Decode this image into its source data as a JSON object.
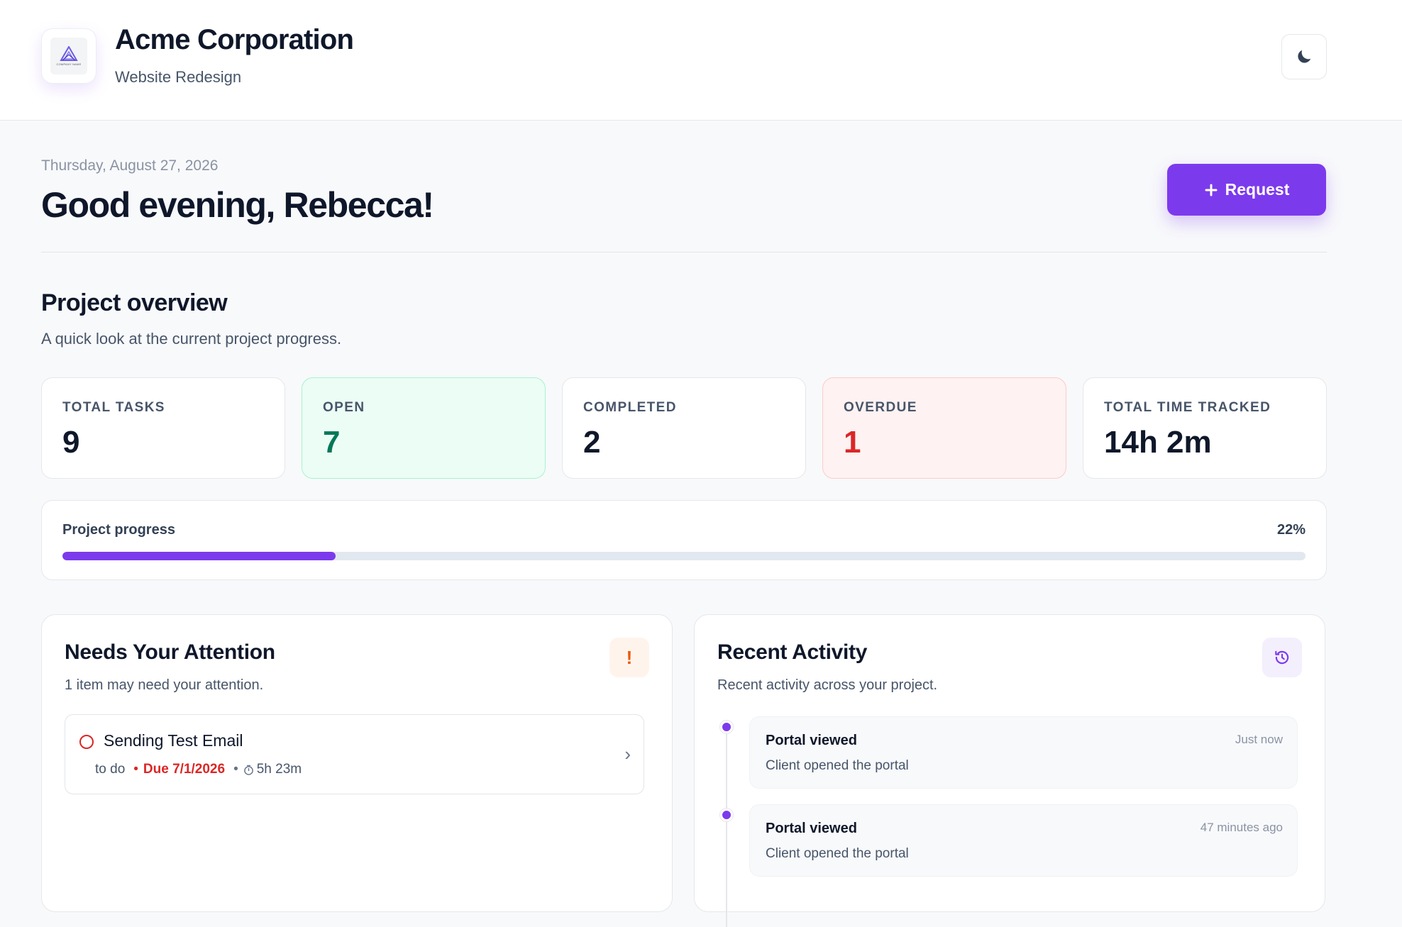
{
  "header": {
    "company_name": "Acme Corporation",
    "project_name": "Website Redesign",
    "logo_caption": "COMPANY NAME",
    "theme_icon": "moon-icon"
  },
  "greeting": {
    "date": "Thursday, August 27, 2026",
    "message": "Good evening, Rebecca!",
    "request_button_label": "Request",
    "request_button_icon": "plus-icon"
  },
  "overview": {
    "title": "Project overview",
    "subtitle": "A quick look at the current project progress.",
    "stats": [
      {
        "label": "TOTAL TASKS",
        "value": "9"
      },
      {
        "label": "OPEN",
        "value": "7"
      },
      {
        "label": "COMPLETED",
        "value": "2"
      },
      {
        "label": "OVERDUE",
        "value": "1"
      },
      {
        "label": "TOTAL TIME TRACKED",
        "value": "14h 2m"
      }
    ],
    "progress": {
      "label": "Project progress",
      "percent_text": "22%",
      "percent": 22
    }
  },
  "attention": {
    "title": "Needs Your Attention",
    "subtitle": "1 item may need your attention.",
    "icon": "exclamation-icon",
    "icon_glyph": "!",
    "items": [
      {
        "title": "Sending Test Email",
        "status": "to do",
        "due": "Due 7/1/2026",
        "time": "5h 23m"
      }
    ]
  },
  "activity": {
    "title": "Recent Activity",
    "subtitle": "Recent activity across your project.",
    "icon": "history-icon",
    "items": [
      {
        "title": "Portal viewed",
        "description": "Client opened the portal",
        "time": "Just now"
      },
      {
        "title": "Portal viewed",
        "description": "Client opened the portal",
        "time": "47 minutes ago"
      }
    ]
  },
  "colors": {
    "accent": "#7c3aed",
    "open": "#047857",
    "overdue": "#dc2626",
    "warning": "#ea580c"
  }
}
